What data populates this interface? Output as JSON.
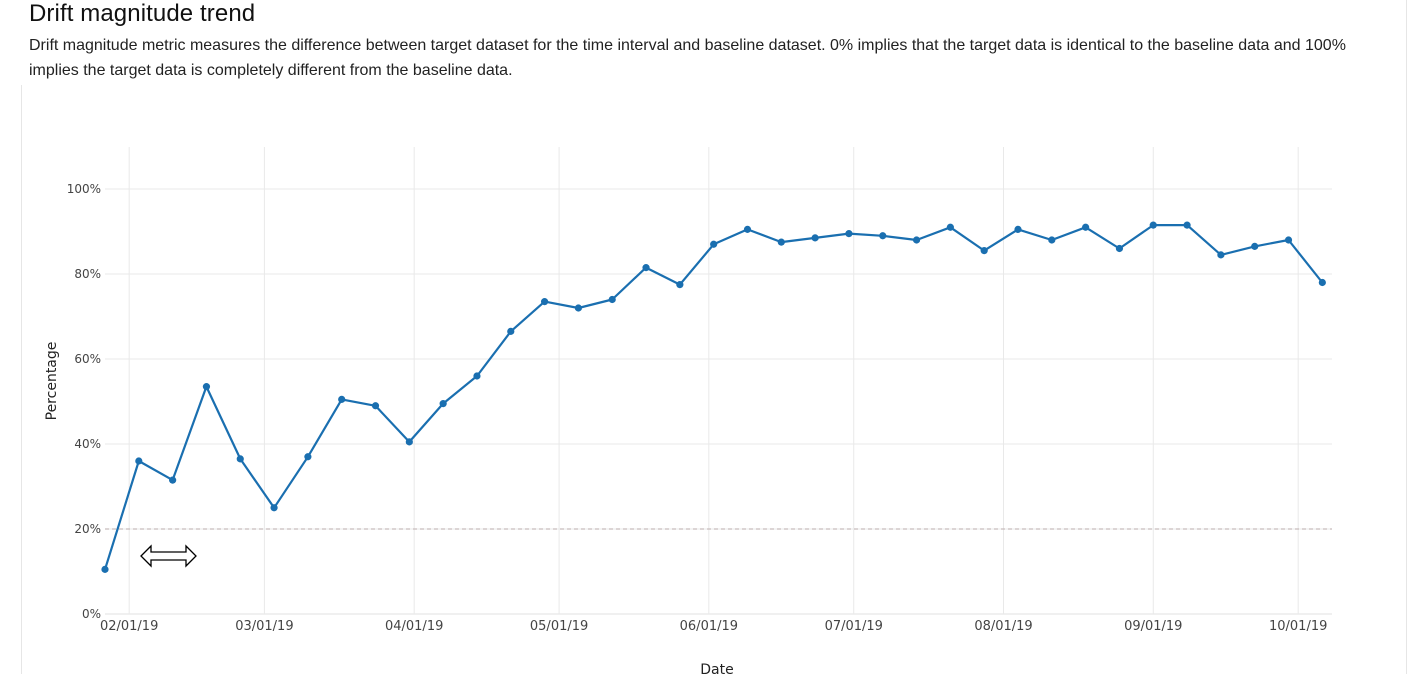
{
  "header": {
    "title": "Drift magnitude trend",
    "description": "Drift magnitude metric measures the difference between target dataset for the time interval and baseline dataset. 0% implies that the target data is identical to the baseline data and 100% implies the target data is completely different from the baseline data."
  },
  "chart_data": {
    "type": "line",
    "xlabel": "Date",
    "ylabel": "Percentage",
    "ylim": [
      0,
      100
    ],
    "yticks": [
      "0%",
      "20%",
      "40%",
      "60%",
      "80%",
      "100%"
    ],
    "x_tick_labels": [
      "02/01/19",
      "03/01/19",
      "04/01/19",
      "05/01/19",
      "06/01/19",
      "07/01/19",
      "08/01/19",
      "09/01/19",
      "10/01/19"
    ],
    "x_tick_dates": [
      "2019-02-01",
      "2019-03-01",
      "2019-04-01",
      "2019-05-01",
      "2019-06-01",
      "2019-07-01",
      "2019-08-01",
      "2019-09-01",
      "2019-10-01"
    ],
    "xlim": [
      "2019-01-27",
      "2019-10-08"
    ],
    "threshold": 20,
    "grid": true,
    "series": [
      {
        "color": "#1a6fb0",
        "points": [
          {
            "x": "2019-01-27",
            "y": 10.5
          },
          {
            "x": "2019-02-03",
            "y": 36
          },
          {
            "x": "2019-02-10",
            "y": 31.5
          },
          {
            "x": "2019-02-17",
            "y": 53.5
          },
          {
            "x": "2019-02-24",
            "y": 36.5
          },
          {
            "x": "2019-03-03",
            "y": 25
          },
          {
            "x": "2019-03-10",
            "y": 37
          },
          {
            "x": "2019-03-17",
            "y": 50.5
          },
          {
            "x": "2019-03-24",
            "y": 49
          },
          {
            "x": "2019-03-31",
            "y": 40.5
          },
          {
            "x": "2019-04-07",
            "y": 49.5
          },
          {
            "x": "2019-04-14",
            "y": 56
          },
          {
            "x": "2019-04-21",
            "y": 66.5
          },
          {
            "x": "2019-04-28",
            "y": 73.5
          },
          {
            "x": "2019-05-05",
            "y": 72
          },
          {
            "x": "2019-05-12",
            "y": 74
          },
          {
            "x": "2019-05-19",
            "y": 81.5
          },
          {
            "x": "2019-05-26",
            "y": 77.5
          },
          {
            "x": "2019-06-02",
            "y": 87
          },
          {
            "x": "2019-06-09",
            "y": 90.5
          },
          {
            "x": "2019-06-16",
            "y": 87.5
          },
          {
            "x": "2019-06-23",
            "y": 88.5
          },
          {
            "x": "2019-06-30",
            "y": 89.5
          },
          {
            "x": "2019-07-07",
            "y": 89
          },
          {
            "x": "2019-07-14",
            "y": 88
          },
          {
            "x": "2019-07-21",
            "y": 91
          },
          {
            "x": "2019-07-28",
            "y": 85.5
          },
          {
            "x": "2019-08-04",
            "y": 90.5
          },
          {
            "x": "2019-08-11",
            "y": 88
          },
          {
            "x": "2019-08-18",
            "y": 91
          },
          {
            "x": "2019-08-25",
            "y": 86
          },
          {
            "x": "2019-09-01",
            "y": 91.5
          },
          {
            "x": "2019-09-08",
            "y": 91.5
          },
          {
            "x": "2019-09-15",
            "y": 84.5
          },
          {
            "x": "2019-09-22",
            "y": 86.5
          },
          {
            "x": "2019-09-29",
            "y": 88
          },
          {
            "x": "2019-10-06",
            "y": 78
          }
        ]
      }
    ]
  },
  "colors": {
    "line": "#1a6fb0",
    "grid": "#e9e9e9",
    "threshold": "#c8bcbc"
  }
}
